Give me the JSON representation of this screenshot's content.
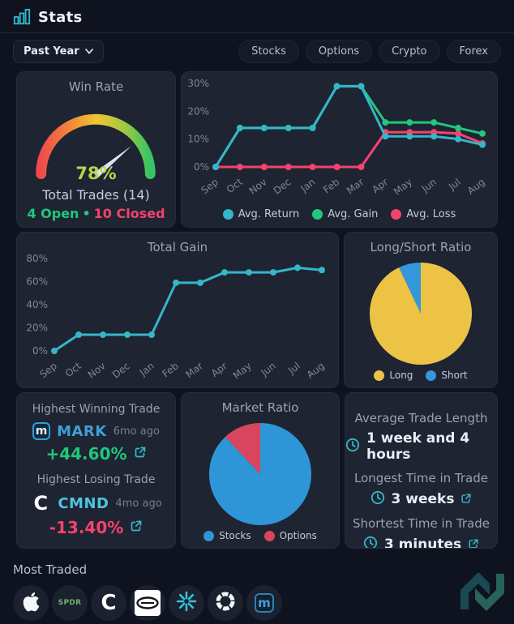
{
  "header": {
    "title": "Stats"
  },
  "filters": {
    "period_label": "Past Year",
    "tabs": [
      "Stocks",
      "Options",
      "Crypto",
      "Forex"
    ]
  },
  "win_rate": {
    "title": "Win Rate",
    "value_label": "78%",
    "total_trades": "Total Trades (14)",
    "open": "4 Open",
    "dot": "•",
    "closed": "10 Closed"
  },
  "chart_data": [
    {
      "id": "avg_performance",
      "type": "line",
      "x": [
        "Sep",
        "Oct",
        "Nov",
        "Dec",
        "Jan",
        "Feb",
        "Mar",
        "Apr",
        "May",
        "Jun",
        "Jul",
        "Aug"
      ],
      "ylim": [
        0,
        30
      ],
      "yticks": [
        0,
        10,
        20,
        30
      ],
      "ytick_suffix": "%",
      "legend_position": "bottom",
      "grid": false,
      "series": [
        {
          "name": "Avg. Return",
          "color": "#35b6c9",
          "values": [
            0,
            14,
            14,
            14,
            14,
            29,
            29,
            11,
            11,
            11,
            10,
            8
          ]
        },
        {
          "name": "Avg. Gain",
          "color": "#21c77c",
          "values": [
            0,
            14,
            14,
            14,
            14,
            29,
            29,
            16,
            16,
            16,
            14,
            12
          ]
        },
        {
          "name": "Avg. Loss",
          "color": "#f4436c",
          "values": [
            0,
            0,
            0,
            0,
            0,
            0,
            0,
            12.5,
            12.5,
            12.5,
            12,
            8.5
          ]
        }
      ]
    },
    {
      "id": "total_gain",
      "type": "line",
      "title": "Total Gain",
      "x": [
        "Sep",
        "Oct",
        "Nov",
        "Dec",
        "Jan",
        "Feb",
        "Mar",
        "Apr",
        "May",
        "Jun",
        "Jul",
        "Aug"
      ],
      "ylim": [
        0,
        80
      ],
      "yticks": [
        0,
        20,
        40,
        60,
        80
      ],
      "ytick_suffix": "%",
      "legend_position": "none",
      "grid": false,
      "series": [
        {
          "name": "Total Gain",
          "color": "#35b6c9",
          "values": [
            0,
            14,
            14,
            14,
            14,
            59,
            59,
            68,
            68,
            68,
            72,
            70
          ]
        }
      ]
    },
    {
      "id": "long_short",
      "type": "pie",
      "title": "Long/Short Ratio",
      "slices": [
        {
          "label": "Long",
          "value": 93,
          "color": "#ecc345"
        },
        {
          "label": "Short",
          "value": 7,
          "color": "#3598db"
        }
      ]
    },
    {
      "id": "market_ratio",
      "type": "pie",
      "title": "Market Ratio",
      "slices": [
        {
          "label": "Stocks",
          "value": 88,
          "color": "#2e96d6"
        },
        {
          "label": "Options",
          "value": 12,
          "color": "#d9455f"
        }
      ]
    },
    {
      "id": "win_rate_gauge",
      "type": "gauge",
      "value": 78,
      "min": 0,
      "max": 100,
      "gradient": [
        "#ef4b4b",
        "#f2833b",
        "#f2c52f",
        "#a6c93e",
        "#35c466"
      ]
    }
  ],
  "highest_trades": {
    "winning_title": "Highest Winning Trade",
    "winning_ticker": "MARK",
    "winning_time": "6mo ago",
    "winning_pct": "+44.60%",
    "losing_title": "Highest Losing Trade",
    "losing_ticker": "CMND",
    "losing_time": "4mo ago",
    "losing_pct": "-13.40%"
  },
  "trade_times": {
    "items": [
      {
        "label": "Average Trade Length",
        "value": "1 week and 4 hours"
      },
      {
        "label": "Longest Time in Trade",
        "value": "3 weeks"
      },
      {
        "label": "Shortest Time in Trade",
        "value": "3 minutes"
      }
    ]
  },
  "most_traded": {
    "label": "Most Traded",
    "items": [
      {
        "id": "apple",
        "text": ""
      },
      {
        "id": "spdr",
        "text": "SPDR"
      },
      {
        "id": "cmnd",
        "text": "C"
      },
      {
        "id": "oval-badge",
        "text": ""
      },
      {
        "id": "asterisk",
        "text": ""
      },
      {
        "id": "ring",
        "text": ""
      },
      {
        "id": "mark",
        "text": "m"
      }
    ]
  },
  "colors": {
    "accent_teal": "#35b6c9",
    "green": "#21c77c",
    "pink": "#f4436c",
    "yellow": "#ecc345",
    "blue": "#3598db",
    "win_rate_value": "#b9d44d",
    "card_bg": "#1e2432",
    "page_bg": "#0f1320"
  }
}
